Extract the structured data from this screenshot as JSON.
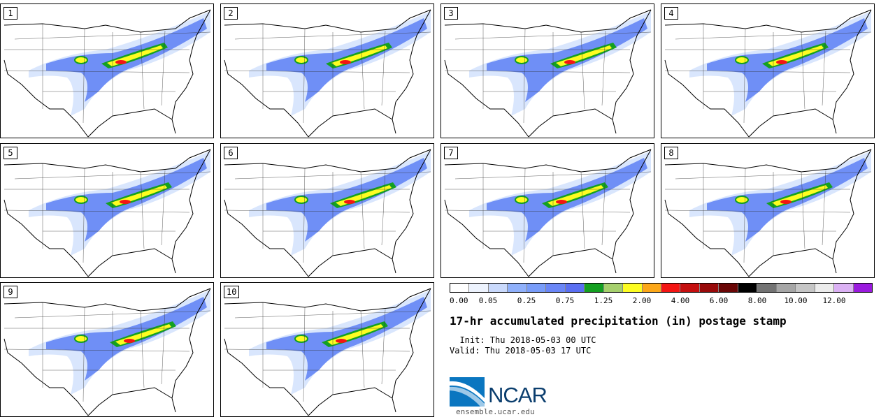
{
  "panels": [
    "1",
    "2",
    "3",
    "4",
    "5",
    "6",
    "7",
    "8",
    "9",
    "10"
  ],
  "colorbar": {
    "colors": [
      "#ffffff",
      "#edf3fe",
      "#c9d9fc",
      "#8fb0fb",
      "#789cf9",
      "#6a86f7",
      "#5a6ff2",
      "#14a021",
      "#a6d06d",
      "#fdfd21",
      "#fca718",
      "#f41513",
      "#c50f0f",
      "#990a0a",
      "#6a0606",
      "#000000",
      "#737373",
      "#a6a6a6",
      "#c6c6c6",
      "#ececec",
      "#dbb1f4",
      "#9a1ade"
    ],
    "ticks": [
      "0.00",
      "0.05",
      "0.25",
      "0.75",
      "1.25",
      "2.00",
      "4.00",
      "6.00",
      "8.00",
      "10.00",
      "12.00"
    ]
  },
  "title": "17-hr accumulated precipitation (in) postage stamp",
  "init": "  Init: Thu 2018-05-03 00 UTC",
  "valid": "Valid: Thu 2018-05-03 17 UTC",
  "logo_text": "NCAR",
  "url": "ensemble.ucar.edu"
}
